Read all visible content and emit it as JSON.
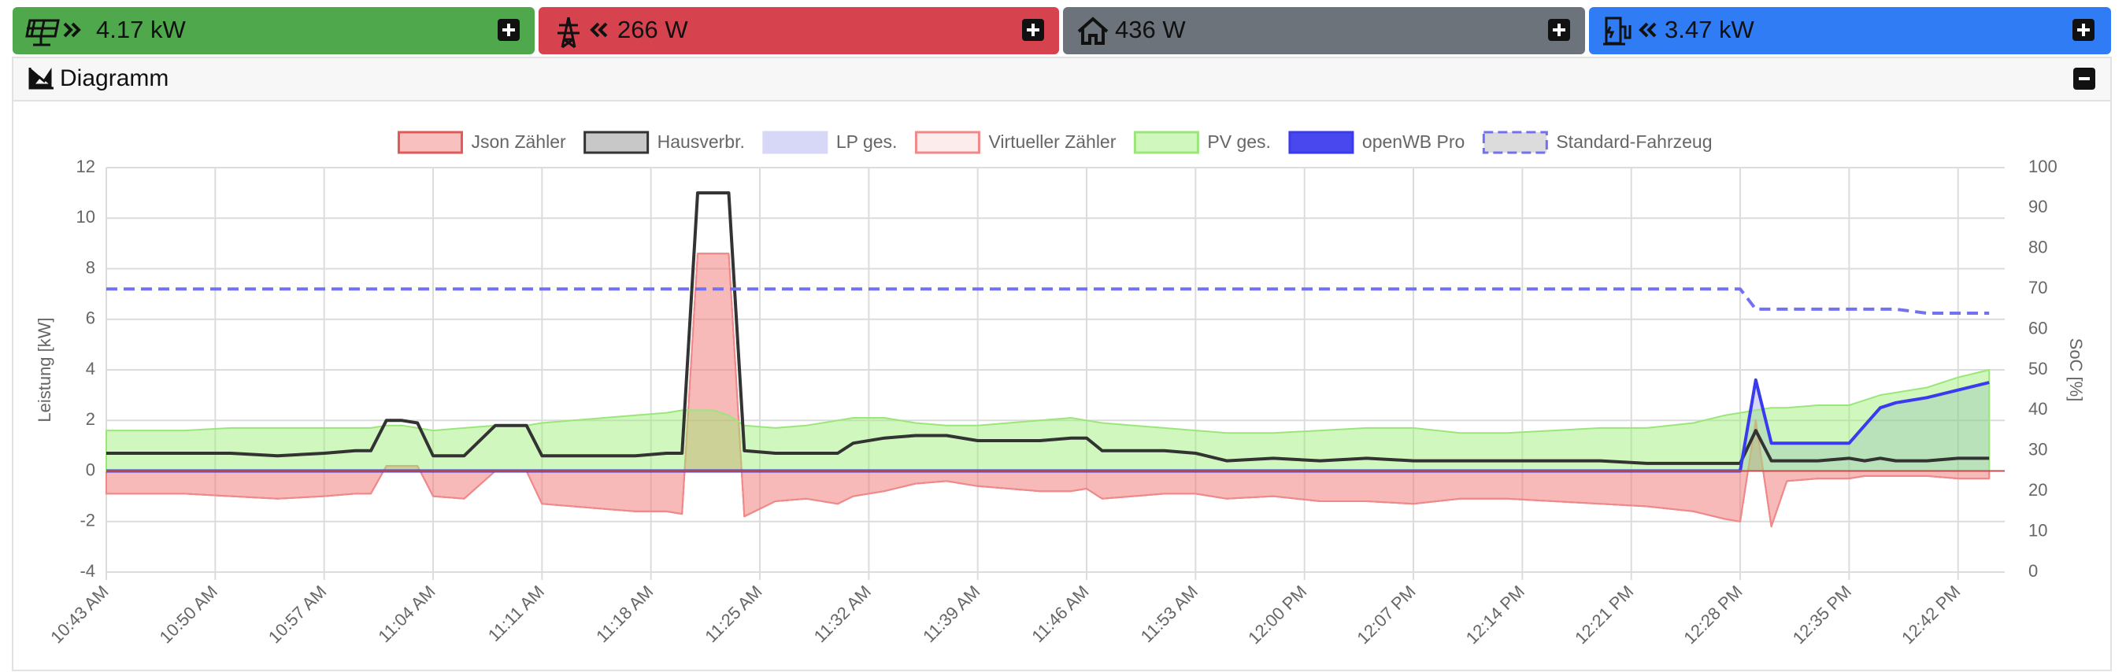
{
  "tiles": [
    {
      "value": "4.17 kW",
      "color": "#4fa84c"
    },
    {
      "value": "266 W",
      "color": "#d6434e"
    },
    {
      "value": "436 W",
      "color": "#6c737b"
    },
    {
      "value": "3.47 kW",
      "color": "#2f7cf4"
    }
  ],
  "panel": {
    "title": "Diagramm"
  },
  "chart_data": {
    "type": "line",
    "y_label": "Leistung [kW]",
    "y2_label": "SoC [%]",
    "x": [
      "10:43 AM",
      "10:45 AM",
      "10:48 AM",
      "10:51 AM",
      "10:54 AM",
      "10:57 AM",
      "10:59 AM",
      "11:00 AM",
      "11:01 AM",
      "11:02 AM",
      "11:03 AM",
      "11:04 AM",
      "11:06 AM",
      "11:08 AM",
      "11:09 AM",
      "11:10 AM",
      "11:11 AM",
      "11:13 AM",
      "11:15 AM",
      "11:17 AM",
      "11:19 AM",
      "11:20 AM",
      "11:21 AM",
      "11:22 AM",
      "11:23 AM",
      "11:24 AM",
      "11:26 AM",
      "11:28 AM",
      "11:30 AM",
      "11:31 AM",
      "11:33 AM",
      "11:35 AM",
      "11:37 AM",
      "11:39 AM",
      "11:41 AM",
      "11:43 AM",
      "11:45 AM",
      "11:46 AM",
      "11:47 AM",
      "11:49 AM",
      "11:51 AM",
      "11:53 AM",
      "11:55 AM",
      "11:58 AM",
      "12:01 PM",
      "12:04 PM",
      "12:07 PM",
      "12:10 PM",
      "12:13 PM",
      "12:16 PM",
      "12:19 PM",
      "12:22 PM",
      "12:25 PM",
      "12:27 PM",
      "12:28 PM",
      "12:29 PM",
      "12:30 PM",
      "12:31 PM",
      "12:33 PM",
      "12:35 PM",
      "12:36 PM",
      "12:37 PM",
      "12:38 PM",
      "12:40 PM",
      "12:42 PM",
      "12:44 PM"
    ],
    "xlim": [
      "10:43 AM",
      "12:45 PM"
    ],
    "xticks": [
      "10:43 AM",
      "10:50 AM",
      "10:57 AM",
      "11:04 AM",
      "11:11 AM",
      "11:18 AM",
      "11:25 AM",
      "11:32 AM",
      "11:39 AM",
      "11:46 AM",
      "11:53 AM",
      "12:00 PM",
      "12:07 PM",
      "12:14 PM",
      "12:21 PM",
      "12:28 PM",
      "12:35 PM",
      "12:42 PM"
    ],
    "ylim": [
      -4,
      12
    ],
    "yticks": [
      -4,
      -2,
      0,
      2,
      4,
      6,
      8,
      10,
      12
    ],
    "y2lim": [
      0,
      100
    ],
    "y2ticks": [
      0,
      10,
      20,
      30,
      40,
      50,
      60,
      70,
      80,
      90,
      100
    ],
    "grid": true,
    "series": [
      {
        "name": "Json Zähler",
        "color": "#e05a5a",
        "fill": "rgba(240,90,90,0.38)",
        "area": true,
        "values": [
          -0.9,
          -0.9,
          -0.9,
          -1.0,
          -1.1,
          -1.0,
          -0.9,
          -0.9,
          0.2,
          0.2,
          0.2,
          -1.0,
          -1.1,
          0.0,
          0.0,
          0.0,
          -1.3,
          -1.4,
          -1.5,
          -1.6,
          -1.6,
          -1.7,
          8.6,
          8.6,
          8.6,
          -1.8,
          -1.2,
          -1.1,
          -1.3,
          -1.0,
          -0.8,
          -0.5,
          -0.4,
          -0.6,
          -0.7,
          -0.8,
          -0.8,
          -0.7,
          -1.1,
          -1.0,
          -0.9,
          -0.9,
          -1.1,
          -1.0,
          -1.2,
          -1.2,
          -1.3,
          -1.1,
          -1.1,
          -1.2,
          -1.3,
          -1.4,
          -1.6,
          -1.9,
          -2.0,
          2.0,
          -2.2,
          -0.4,
          -0.3,
          -0.3,
          -0.2,
          -0.2,
          -0.2,
          -0.2,
          -0.3,
          -0.3
        ]
      },
      {
        "name": "Hausverbr.",
        "color": "#333333",
        "fill": "#c8c8c8",
        "area": false,
        "values": [
          0.7,
          0.7,
          0.7,
          0.7,
          0.6,
          0.7,
          0.8,
          0.8,
          2.0,
          2.0,
          1.9,
          0.6,
          0.6,
          1.8,
          1.8,
          1.8,
          0.6,
          0.6,
          0.6,
          0.6,
          0.7,
          0.7,
          11.0,
          11.0,
          11.0,
          0.8,
          0.7,
          0.7,
          0.7,
          1.1,
          1.3,
          1.4,
          1.4,
          1.2,
          1.2,
          1.2,
          1.3,
          1.3,
          0.8,
          0.8,
          0.8,
          0.7,
          0.4,
          0.5,
          0.4,
          0.5,
          0.4,
          0.4,
          0.4,
          0.4,
          0.4,
          0.3,
          0.3,
          0.3,
          0.3,
          1.6,
          0.4,
          0.4,
          0.4,
          0.5,
          0.4,
          0.5,
          0.4,
          0.4,
          0.5,
          0.5
        ]
      },
      {
        "name": "LP ges.",
        "color": "#d8d8f6",
        "fill": "rgba(110,110,230,0.28)",
        "area": true,
        "values": [
          0,
          0,
          0,
          0,
          0,
          0,
          0,
          0,
          0,
          0,
          0,
          0,
          0,
          0,
          0,
          0,
          0,
          0,
          0,
          0,
          0,
          0,
          0,
          0,
          0,
          0,
          0,
          0,
          0,
          0,
          0,
          0,
          0,
          0,
          0,
          0,
          0,
          0,
          0,
          0,
          0,
          0,
          0,
          0,
          0,
          0,
          0,
          0,
          0,
          0,
          0,
          0,
          0,
          0,
          0,
          3.6,
          1.1,
          1.1,
          1.1,
          1.1,
          1.8,
          2.5,
          2.7,
          2.9,
          3.2,
          3.5
        ]
      },
      {
        "name": "Virtueller Zähler",
        "color": "#f08a8a",
        "fill": "rgba(245,160,160,0.2)",
        "area": true,
        "values": [
          -0.9,
          -0.9,
          -0.9,
          -1.0,
          -1.1,
          -1.0,
          -0.9,
          -0.9,
          0.2,
          0.2,
          0.2,
          -1.0,
          -1.1,
          0.0,
          0.0,
          0.0,
          -1.3,
          -1.4,
          -1.5,
          -1.6,
          -1.6,
          -1.7,
          8.6,
          8.6,
          8.6,
          -1.8,
          -1.2,
          -1.1,
          -1.3,
          -1.0,
          -0.8,
          -0.5,
          -0.4,
          -0.6,
          -0.7,
          -0.8,
          -0.8,
          -0.7,
          -1.1,
          -1.0,
          -0.9,
          -0.9,
          -1.1,
          -1.0,
          -1.2,
          -1.2,
          -1.3,
          -1.1,
          -1.1,
          -1.2,
          -1.3,
          -1.4,
          -1.6,
          -1.9,
          -2.0,
          2.0,
          -2.2,
          -0.4,
          -0.3,
          -0.3,
          -0.2,
          -0.2,
          -0.2,
          -0.2,
          -0.3,
          -0.3
        ]
      },
      {
        "name": "PV ges.",
        "color": "#9be67a",
        "fill": "rgba(150,240,110,0.45)",
        "area": true,
        "values": [
          1.6,
          1.6,
          1.6,
          1.7,
          1.7,
          1.7,
          1.7,
          1.7,
          1.8,
          1.8,
          1.7,
          1.6,
          1.7,
          1.8,
          1.8,
          1.8,
          1.9,
          2.0,
          2.1,
          2.2,
          2.3,
          2.4,
          2.4,
          2.4,
          2.2,
          1.8,
          1.7,
          1.8,
          2.0,
          2.1,
          2.1,
          1.9,
          1.8,
          1.8,
          1.9,
          2.0,
          2.1,
          2.0,
          1.9,
          1.8,
          1.7,
          1.6,
          1.5,
          1.5,
          1.6,
          1.7,
          1.7,
          1.5,
          1.5,
          1.6,
          1.7,
          1.7,
          1.9,
          2.2,
          2.3,
          2.4,
          2.5,
          2.5,
          2.6,
          2.6,
          2.8,
          3.0,
          3.1,
          3.3,
          3.7,
          4.0
        ]
      },
      {
        "name": "openWB Pro",
        "color": "#3a3aee",
        "fill": "#4848ee",
        "area": false,
        "values": [
          0,
          0,
          0,
          0,
          0,
          0,
          0,
          0,
          0,
          0,
          0,
          0,
          0,
          0,
          0,
          0,
          0,
          0,
          0,
          0,
          0,
          0,
          0,
          0,
          0,
          0,
          0,
          0,
          0,
          0,
          0,
          0,
          0,
          0,
          0,
          0,
          0,
          0,
          0,
          0,
          0,
          0,
          0,
          0,
          0,
          0,
          0,
          0,
          0,
          0,
          0,
          0,
          0,
          0,
          0,
          3.6,
          1.1,
          1.1,
          1.1,
          1.1,
          1.8,
          2.5,
          2.7,
          2.9,
          3.2,
          3.5
        ]
      },
      {
        "name": "Standard-Fahrzeug",
        "color": "#7272f0",
        "fill": "#dcdcdc",
        "area": false,
        "dashed": true,
        "axis": "y2",
        "values": [
          70,
          70,
          70,
          70,
          70,
          70,
          70,
          70,
          70,
          70,
          70,
          70,
          70,
          70,
          70,
          70,
          70,
          70,
          70,
          70,
          70,
          70,
          70,
          70,
          70,
          70,
          70,
          70,
          70,
          70,
          70,
          70,
          70,
          70,
          70,
          70,
          70,
          70,
          70,
          70,
          70,
          70,
          70,
          70,
          70,
          70,
          70,
          70,
          70,
          70,
          70,
          70,
          70,
          70,
          70,
          65,
          65,
          65,
          65,
          65,
          65,
          65,
          65,
          64,
          64,
          64
        ]
      }
    ]
  }
}
